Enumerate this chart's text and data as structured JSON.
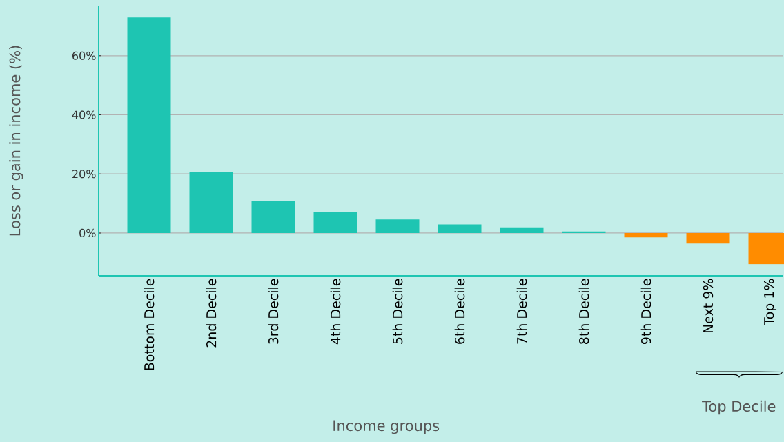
{
  "chart_data": {
    "type": "bar",
    "xlabel": "Income groups",
    "ylabel": "Loss or gain in income (%)",
    "categories": [
      "Bottom Decile",
      "2nd Decile",
      "3rd Decile",
      "4th Decile",
      "5th Decile",
      "6th Decile",
      "7th Decile",
      "8th Decile",
      "9th Decile",
      "Next 9%",
      "Top 1%"
    ],
    "values": [
      73.0,
      20.7,
      10.7,
      7.2,
      4.6,
      2.9,
      1.9,
      0.5,
      -1.5,
      -3.6,
      -10.6
    ],
    "colors": [
      "#1ec5b2",
      "#1ec5b2",
      "#1ec5b2",
      "#1ec5b2",
      "#1ec5b2",
      "#1ec5b2",
      "#1ec5b2",
      "#1ec5b2",
      "#ff8c00",
      "#ff8c00",
      "#ff8c00"
    ],
    "ylim": [
      -14.5,
      77
    ],
    "yticks": [
      {
        "value": 0,
        "label": "0%"
      },
      {
        "value": 20,
        "label": "20%"
      },
      {
        "value": 40,
        "label": "40%"
      },
      {
        "value": 60,
        "label": "60%"
      }
    ],
    "grid": "y",
    "annotations": [
      "Top Decile"
    ]
  }
}
